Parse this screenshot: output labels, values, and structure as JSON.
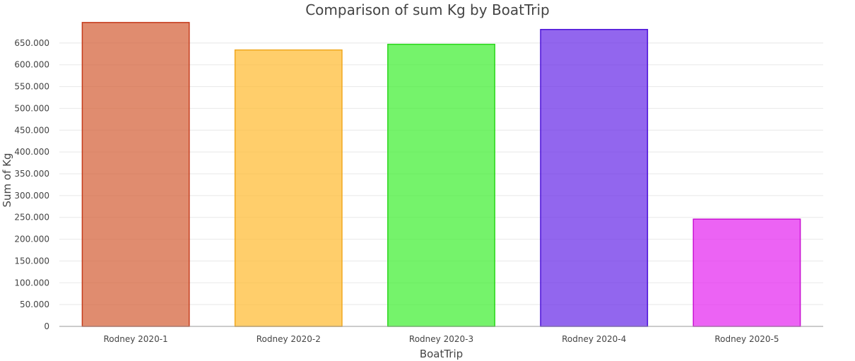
{
  "chart_data": {
    "type": "bar",
    "title": "Comparison of sum Kg by BoatTrip",
    "xlabel": "BoatTrip",
    "ylabel": "Sum of Kg",
    "categories": [
      "Rodney 2020-1",
      "Rodney 2020-2",
      "Rodney 2020-3",
      "Rodney 2020-4",
      "Rodney 2020-5"
    ],
    "values": [
      697000,
      634000,
      647000,
      681000,
      246000
    ],
    "ylim": [
      0,
      700000
    ],
    "yticks": [
      0,
      50000,
      100000,
      150000,
      200000,
      250000,
      300000,
      350000,
      400000,
      450000,
      500000,
      550000,
      600000,
      650000
    ],
    "ytick_labels": [
      "0",
      "50.000",
      "100.000",
      "150.000",
      "200.000",
      "250.000",
      "300.000",
      "350.000",
      "400.000",
      "450.000",
      "500.000",
      "550.000",
      "600.000",
      "650.000"
    ],
    "grid": true,
    "colors": [
      {
        "fill": "#d5653f",
        "stroke": "#c53a1a"
      },
      {
        "fill": "#ffbe3a",
        "stroke": "#f0a820"
      },
      {
        "fill": "#47ef3a",
        "stroke": "#2bd61c"
      },
      {
        "fill": "#6e33e8",
        "stroke": "#4a10d8"
      },
      {
        "fill": "#e52ff0",
        "stroke": "#c810d2"
      }
    ]
  }
}
